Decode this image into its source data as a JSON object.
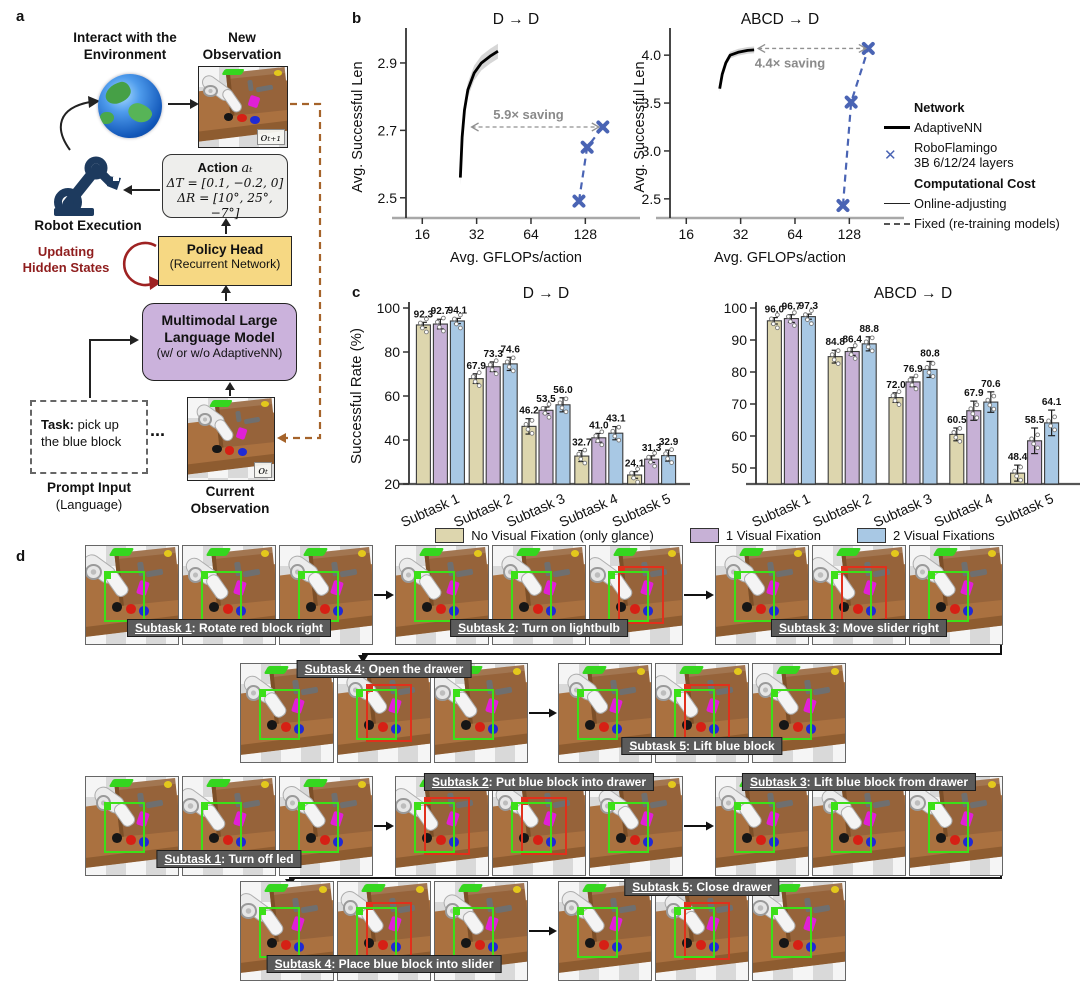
{
  "panel_a": {
    "label": "a",
    "interact_line1": "Interact with the",
    "interact_line2": "Environment",
    "new_obs_line1": "New",
    "new_obs_line2": "Observation",
    "obs_next_tag": "oₜ₊₁",
    "robot_execution": "Robot Execution",
    "action_title_prefix": "Action ",
    "action_title_var": "aₜ",
    "action_line1": "ΔT = [0.1, −0.2, 0]",
    "action_line2": "ΔR = [10°, 25°, −7°]",
    "updating_line1": "Updating",
    "updating_line2": "Hidden States",
    "policy_title": "Policy Head",
    "policy_sub": "(Recurrent Network)",
    "mllm_line1": "Multimodal Large",
    "mllm_line2": "Language Model",
    "mllm_sub": "(w/ or w/o AdaptiveNN)",
    "task_prefix": "Task:",
    "task_text": " pick up the blue block",
    "ellipsis": "...",
    "prompt_line1": "Prompt Input",
    "prompt_line2": "(Language)",
    "current_tag": "oₜ",
    "current_line1": "Current",
    "current_line2": "Observation",
    "colors": {
      "policy_head": "#f6d883",
      "mllm": "#cbb2dc",
      "action_box": "#eeeeec",
      "updating_text": "#8f1d1d",
      "dashed_loop": "#a5632a",
      "hidden_state_loop": "#9e2222"
    }
  },
  "panel_b": {
    "label": "b",
    "legend": {
      "network_header": "Network",
      "adaptivenn": "AdaptiveNN",
      "roboflamingo_line1": "RoboFlamingo",
      "roboflamingo_line2": "3B 6/12/24 layers",
      "cost_header": "Computational Cost",
      "online": "Online-adjusting",
      "fixed": "Fixed (re-training models)"
    }
  },
  "panel_c": {
    "label": "c",
    "legend_items": [
      {
        "label": "No Visual Fixation (only glance)",
        "color": "#ddd6ae"
      },
      {
        "label": "1 Visual Fixation",
        "color": "#c7b1d6"
      },
      {
        "label": "2 Visual Fixations",
        "color": "#a8c8e4"
      }
    ]
  },
  "chart_data": [
    {
      "type": "line",
      "title": "D → D",
      "xlabel": "Avg. GFLOPs/action",
      "ylabel": "Avg. Successful Len",
      "xscale": "log2",
      "xlim": [
        13,
        215
      ],
      "xticks": [
        16,
        32,
        64,
        128
      ],
      "ylim": [
        2.44,
        2.98
      ],
      "yticks": [
        2.5,
        2.7,
        2.9
      ],
      "series": [
        {
          "name": "AdaptiveNN",
          "style": "solid-thick",
          "color": "#000000",
          "band": 0.022,
          "points": [
            [
              26,
              2.56
            ],
            [
              26.6,
              2.68
            ],
            [
              27.4,
              2.76
            ],
            [
              28.6,
              2.82
            ],
            [
              31,
              2.87
            ],
            [
              34,
              2.9
            ],
            [
              38,
              2.92
            ],
            [
              42,
              2.935
            ]
          ]
        },
        {
          "name": "RoboFlamingo 3B 6/12/24 layers",
          "style": "dashed-x",
          "color": "#4a64b4",
          "points": [
            [
              118,
              2.49
            ],
            [
              131,
              2.65
            ],
            [
              160,
              2.71
            ]
          ]
        }
      ],
      "annotation": {
        "text": "5.9× saving",
        "y": 2.71,
        "x_from": 30,
        "x_to": 152,
        "label_x": 62,
        "label_side": "above"
      }
    },
    {
      "type": "line",
      "title": "ABCD → D",
      "xlabel": "Avg. GFLOPs/action",
      "ylabel": "Avg. Successful Len",
      "xscale": "log2",
      "xlim": [
        13,
        215
      ],
      "xticks": [
        16,
        32,
        64,
        128
      ],
      "ylim": [
        2.3,
        4.2
      ],
      "yticks": [
        2.5,
        3.0,
        3.5,
        4.0
      ],
      "series": [
        {
          "name": "AdaptiveNN",
          "style": "solid-thick",
          "color": "#000000",
          "band": 0.035,
          "points": [
            [
              24.5,
              3.65
            ],
            [
              25.3,
              3.8
            ],
            [
              26.5,
              3.92
            ],
            [
              28,
              4.0
            ],
            [
              31,
              4.03
            ],
            [
              35,
              4.05
            ],
            [
              38,
              4.055
            ]
          ]
        },
        {
          "name": "RoboFlamingo 3B 6/12/24 layers",
          "style": "dashed-x",
          "color": "#4a64b4",
          "points": [
            [
              118,
              2.43
            ],
            [
              131,
              3.51
            ],
            [
              163,
              4.07
            ]
          ]
        }
      ],
      "annotation": {
        "text": "4.4× saving",
        "y": 4.07,
        "x_from": 40,
        "x_to": 158,
        "label_x": 60,
        "label_side": "below"
      }
    },
    {
      "type": "bar",
      "title": "D → D",
      "ylabel": "Successful Rate (%)",
      "categories": [
        "Subtask 1",
        "Subtask 2",
        "Subtask 3",
        "Subtask 4",
        "Subtask 5"
      ],
      "ylim": [
        20,
        100
      ],
      "yticks": [
        20,
        40,
        60,
        80,
        100
      ],
      "series": [
        {
          "name": "No Visual Fixation (only glance)",
          "color": "#ddd6ae",
          "values": [
            92.3,
            67.9,
            46.2,
            32.7,
            24.1
          ],
          "errors": [
            1.2,
            2.2,
            3.5,
            2.5,
            1.5
          ]
        },
        {
          "name": "1 Visual Fixation",
          "color": "#c7b1d6",
          "values": [
            92.7,
            73.3,
            53.5,
            41.0,
            31.3
          ],
          "errors": [
            2.2,
            2.2,
            1.5,
            2.0,
            1.5
          ]
        },
        {
          "name": "2 Visual Fixations",
          "color": "#a8c8e4",
          "values": [
            94.1,
            74.6,
            56.0,
            43.1,
            32.9
          ],
          "errors": [
            1.2,
            3.0,
            3.2,
            3.0,
            2.5
          ]
        }
      ]
    },
    {
      "type": "bar",
      "title": "ABCD → D",
      "ylabel": "",
      "categories": [
        "Subtask 1",
        "Subtask 2",
        "Subtask 3",
        "Subtask 4",
        "Subtask 5"
      ],
      "ylim": [
        45,
        100
      ],
      "yticks": [
        50,
        60,
        70,
        80,
        90,
        100
      ],
      "series": [
        {
          "name": "No Visual Fixation (only glance)",
          "color": "#ddd6ae",
          "values": [
            96.0,
            84.8,
            72.0,
            60.5,
            48.4
          ],
          "errors": [
            1.0,
            2.0,
            1.5,
            2.0,
            2.5
          ]
        },
        {
          "name": "1 Visual Fixation",
          "color": "#c7b1d6",
          "values": [
            96.7,
            86.4,
            76.9,
            67.9,
            58.5
          ],
          "errors": [
            1.2,
            1.2,
            1.5,
            3.0,
            4.0
          ]
        },
        {
          "name": "2 Visual Fixations",
          "color": "#a8c8e4",
          "values": [
            97.3,
            88.8,
            80.8,
            70.6,
            64.1
          ],
          "errors": [
            0.8,
            2.2,
            2.5,
            3.2,
            4.0
          ]
        }
      ]
    }
  ],
  "panel_d": {
    "label": "d",
    "rows": [
      {
        "groups": [
          {
            "label_prefix": "Subtask 1",
            "label_rest": ": Rotate red block right",
            "label_pos": "bottom",
            "images": [
              {
                "boxes": [
                  "green"
                ]
              },
              {
                "boxes": [
                  "green"
                ]
              },
              {
                "boxes": [
                  "green"
                ]
              }
            ]
          },
          {
            "label_prefix": "Subtask 2",
            "label_rest": ": Turn on lightbulb",
            "label_pos": "bottom",
            "images": [
              {
                "boxes": [
                  "green"
                ]
              },
              {
                "boxes": [
                  "green"
                ]
              },
              {
                "boxes": [
                  "green",
                  "red"
                ]
              }
            ]
          },
          {
            "label_prefix": "Subtask 3",
            "label_rest": ": Move slider right",
            "label_pos": "bottom",
            "images": [
              {
                "boxes": [
                  "green"
                ]
              },
              {
                "boxes": [
                  "green",
                  "red"
                ]
              },
              {
                "boxes": [
                  "green"
                ]
              }
            ]
          }
        ]
      },
      {
        "groups": [
          {
            "label_prefix": "Subtask 4",
            "label_rest": ": Open the drawer",
            "label_pos": "top",
            "images": [
              {
                "boxes": [
                  "green"
                ]
              },
              {
                "boxes": [
                  "green",
                  "red"
                ]
              },
              {
                "boxes": [
                  "green"
                ]
              }
            ]
          },
          {
            "label_prefix": "Subtask 5",
            "label_rest": ": Lift blue block",
            "label_pos": "bottom",
            "images": [
              {
                "boxes": [
                  "green"
                ]
              },
              {
                "boxes": [
                  "green",
                  "red"
                ]
              },
              {
                "boxes": [
                  "green"
                ]
              }
            ]
          }
        ]
      },
      {
        "groups": [
          {
            "label_prefix": "Subtask 1",
            "label_rest": ": Turn off led",
            "label_pos": "bottom",
            "images": [
              {
                "boxes": [
                  "green"
                ]
              },
              {
                "boxes": [
                  "green"
                ]
              },
              {
                "boxes": [
                  "green"
                ]
              }
            ]
          },
          {
            "label_prefix": "Subtask 2",
            "label_rest": ": Put blue block into drawer",
            "label_pos": "top",
            "images": [
              {
                "boxes": [
                  "green",
                  "red"
                ]
              },
              {
                "boxes": [
                  "green",
                  "red"
                ]
              },
              {
                "boxes": [
                  "green"
                ]
              }
            ]
          },
          {
            "label_prefix": "Subtask 3",
            "label_rest": ": Lift blue block from drawer",
            "label_pos": "top",
            "images": [
              {
                "boxes": [
                  "green"
                ]
              },
              {
                "boxes": [
                  "green"
                ]
              },
              {
                "boxes": [
                  "green"
                ]
              }
            ]
          }
        ]
      },
      {
        "groups": [
          {
            "label_prefix": "Subtask 4",
            "label_rest": ": Place blue block into slider",
            "label_pos": "bottom",
            "images": [
              {
                "boxes": [
                  "green"
                ]
              },
              {
                "boxes": [
                  "green",
                  "red"
                ]
              },
              {
                "boxes": [
                  "green"
                ]
              }
            ]
          },
          {
            "label_prefix": "Subtask 5",
            "label_rest": ": Close drawer",
            "label_pos": "top",
            "images": [
              {
                "boxes": [
                  "green"
                ]
              },
              {
                "boxes": [
                  "green",
                  "red"
                ]
              },
              {
                "boxes": [
                  "green"
                ]
              }
            ]
          }
        ]
      }
    ]
  }
}
